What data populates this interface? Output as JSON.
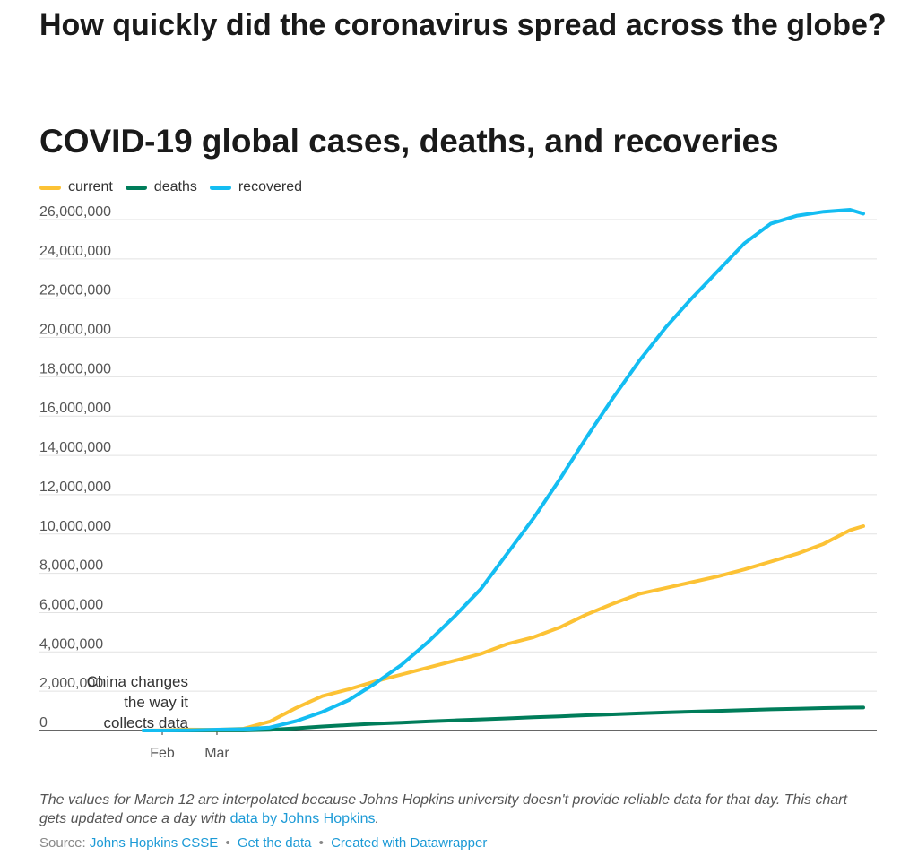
{
  "headline": "How quickly did the coronavirus spread across the globe?",
  "chart_data": {
    "type": "line",
    "title": "COVID-19 global cases, deaths, and recoveries",
    "xlabel": "",
    "ylabel": "",
    "x_ticks": [
      "Feb",
      "Mar"
    ],
    "ylim": [
      0,
      26000000
    ],
    "y_ticks": [
      0,
      2000000,
      4000000,
      6000000,
      8000000,
      10000000,
      12000000,
      14000000,
      16000000,
      18000000,
      20000000,
      22000000,
      24000000,
      26000000
    ],
    "y_tick_labels": [
      "0",
      "2,000,000",
      "4,000,000",
      "6,000,000",
      "8,000,000",
      "10,000,000",
      "12,000,000",
      "14,000,000",
      "16,000,000",
      "18,000,000",
      "20,000,000",
      "22,000,000",
      "24,000,000",
      "26,000,000"
    ],
    "legend_position": "top-left",
    "grid": true,
    "x": [
      "2020-01-22",
      "2020-02-01",
      "2020-02-15",
      "2020-03-01",
      "2020-03-15",
      "2020-03-29",
      "2020-04-12",
      "2020-04-26",
      "2020-05-10",
      "2020-05-24",
      "2020-06-07",
      "2020-06-21",
      "2020-07-05",
      "2020-07-19",
      "2020-08-02",
      "2020-08-16",
      "2020-08-30",
      "2020-09-13",
      "2020-09-27",
      "2020-10-11",
      "2020-10-25",
      "2020-11-08",
      "2020-11-22",
      "2020-12-06",
      "2020-12-20",
      "2021-01-03",
      "2021-01-17",
      "2021-01-31",
      "2021-02-07"
    ],
    "series": [
      {
        "name": "current",
        "color": "#fcc235",
        "values": [
          500,
          9000,
          50000,
          40000,
          90000,
          450000,
          1150000,
          1750000,
          2100000,
          2500000,
          2850000,
          3200000,
          3550000,
          3900000,
          4400000,
          4750000,
          5250000,
          5900000,
          6450000,
          6950000,
          7250000,
          7550000,
          7850000,
          8200000,
          8600000,
          9000000,
          9500000,
          10200000,
          10400000
        ]
      },
      {
        "name": "deaths",
        "color": "#007d5a",
        "values": [
          17,
          260,
          1500,
          3000,
          6500,
          35000,
          115000,
          205000,
          280000,
          345000,
          400000,
          460000,
          515000,
          565000,
          615000,
          670000,
          720000,
          775000,
          820000,
          870000,
          915000,
          960000,
          1000000,
          1040000,
          1075000,
          1110000,
          1140000,
          1165000,
          1170000
        ]
      },
      {
        "name": "recovered",
        "color": "#14bdf2",
        "values": [
          30,
          300,
          9000,
          45000,
          72000,
          150000,
          480000,
          950000,
          1550000,
          2400000,
          3350000,
          4500000,
          5800000,
          7200000,
          9000000,
          10800000,
          12800000,
          14900000,
          16900000,
          18800000,
          20500000,
          22000000,
          23400000,
          24800000,
          25800000,
          26200000,
          26400000,
          26500000,
          26300000
        ]
      }
    ],
    "annotations": [
      {
        "lines": [
          "China changes",
          "the way it",
          "collects data"
        ]
      }
    ]
  },
  "notes": {
    "text": "The values for March 12 are interpolated because Johns Hopkins university doesn't provide reliable data for that day. This chart gets updated once a day with ",
    "link": "data by Johns Hopkins",
    "end": "."
  },
  "source": {
    "label": "Source:",
    "link1": "Johns Hopkins CSSE",
    "link2": "Get the data",
    "link3": "Created with Datawrapper",
    "separator": "•"
  }
}
